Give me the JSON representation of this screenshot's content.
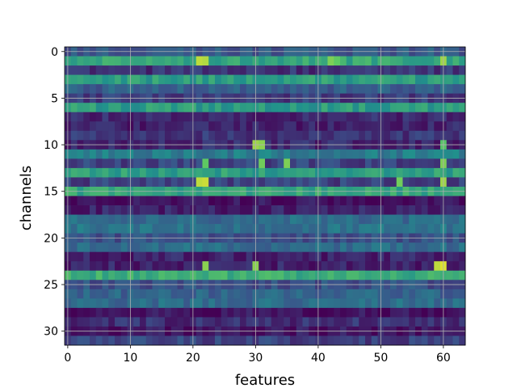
{
  "chart_data": {
    "type": "heatmap",
    "title": "",
    "xlabel": "features",
    "ylabel": "channels",
    "n_cols": 64,
    "n_rows": 32,
    "colormap": [
      "#440154",
      "#3b528b",
      "#21918c",
      "#5ec962",
      "#fde725"
    ],
    "grid": true,
    "xticks": [
      0,
      10,
      20,
      30,
      40,
      50,
      60
    ],
    "yticks": [
      0,
      5,
      10,
      15,
      20,
      25,
      30
    ],
    "row_levels": [
      0.28,
      0.6,
      0.15,
      0.55,
      0.3,
      0.18,
      0.55,
      0.12,
      0.1,
      0.16,
      0.12,
      0.42,
      0.2,
      0.56,
      0.2,
      0.6,
      0.05,
      0.1,
      0.35,
      0.38,
      0.25,
      0.35,
      0.1,
      0.1,
      0.62,
      0.25,
      0.32,
      0.35,
      0.05,
      0.14,
      0.06,
      0.2
    ],
    "hotspots": [
      {
        "row": 1,
        "col": 21,
        "value": 0.9
      },
      {
        "row": 1,
        "col": 22,
        "value": 0.88
      },
      {
        "row": 1,
        "col": 42,
        "value": 0.8
      },
      {
        "row": 1,
        "col": 43,
        "value": 0.75
      },
      {
        "row": 1,
        "col": 60,
        "value": 0.85
      },
      {
        "row": 10,
        "col": 30,
        "value": 0.85
      },
      {
        "row": 10,
        "col": 31,
        "value": 0.82
      },
      {
        "row": 10,
        "col": 60,
        "value": 0.72
      },
      {
        "row": 12,
        "col": 22,
        "value": 0.75
      },
      {
        "row": 12,
        "col": 31,
        "value": 0.78
      },
      {
        "row": 12,
        "col": 35,
        "value": 0.8
      },
      {
        "row": 12,
        "col": 60,
        "value": 0.8
      },
      {
        "row": 14,
        "col": 21,
        "value": 0.9
      },
      {
        "row": 14,
        "col": 22,
        "value": 0.92
      },
      {
        "row": 14,
        "col": 53,
        "value": 0.78
      },
      {
        "row": 14,
        "col": 60,
        "value": 0.85
      },
      {
        "row": 23,
        "col": 22,
        "value": 0.82
      },
      {
        "row": 23,
        "col": 30,
        "value": 0.82
      },
      {
        "row": 23,
        "col": 59,
        "value": 0.9
      },
      {
        "row": 23,
        "col": 60,
        "value": 0.95
      }
    ]
  }
}
